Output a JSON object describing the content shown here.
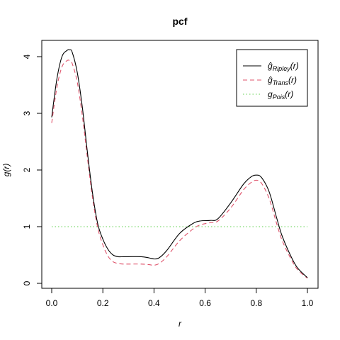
{
  "chart_data": {
    "type": "line",
    "title": "pcf",
    "xlabel": "r",
    "ylabel": "g(r)",
    "xlim": [
      0,
      1
    ],
    "ylim": [
      0,
      4.2
    ],
    "xticks": [
      0.0,
      0.2,
      0.4,
      0.6,
      0.8,
      1.0
    ],
    "xtick_labels": [
      "0.0",
      "0.2",
      "0.4",
      "0.6",
      "0.8",
      "1.0"
    ],
    "yticks": [
      0,
      1,
      2,
      3,
      4
    ],
    "ytick_labels": [
      "0",
      "1",
      "2",
      "3",
      "4"
    ],
    "grid": false,
    "legend_position": "top-right",
    "series": [
      {
        "name": "ĝRipley(r)",
        "name_base": "ĝ",
        "name_sub": "Ripley",
        "name_tail": "(r)",
        "color": "#000000",
        "dash": "solid",
        "x": [
          0.0,
          0.02,
          0.04,
          0.06,
          0.07,
          0.08,
          0.1,
          0.12,
          0.14,
          0.16,
          0.18,
          0.2,
          0.22,
          0.24,
          0.26,
          0.28,
          0.3,
          0.35,
          0.38,
          0.4,
          0.42,
          0.45,
          0.5,
          0.55,
          0.58,
          0.62,
          0.65,
          0.7,
          0.75,
          0.78,
          0.8,
          0.82,
          0.85,
          0.88,
          0.9,
          0.93,
          0.96,
          1.0
        ],
        "y": [
          2.93,
          3.6,
          4.0,
          4.11,
          4.12,
          4.08,
          3.72,
          3.1,
          2.3,
          1.58,
          1.05,
          0.78,
          0.6,
          0.5,
          0.47,
          0.47,
          0.47,
          0.47,
          0.45,
          0.43,
          0.45,
          0.58,
          0.88,
          1.05,
          1.1,
          1.11,
          1.14,
          1.42,
          1.75,
          1.88,
          1.91,
          1.87,
          1.62,
          1.15,
          0.85,
          0.53,
          0.28,
          0.1
        ]
      },
      {
        "name": "ĝTrans(r)",
        "name_base": "ĝ",
        "name_sub": "Trans",
        "name_tail": "(r)",
        "color": "#df536b",
        "dash": "dashed",
        "x": [
          0.0,
          0.02,
          0.04,
          0.06,
          0.07,
          0.08,
          0.1,
          0.12,
          0.14,
          0.16,
          0.18,
          0.2,
          0.22,
          0.24,
          0.26,
          0.28,
          0.3,
          0.35,
          0.38,
          0.4,
          0.42,
          0.45,
          0.5,
          0.55,
          0.58,
          0.62,
          0.65,
          0.7,
          0.75,
          0.78,
          0.8,
          0.82,
          0.85,
          0.88,
          0.9,
          0.93,
          0.96,
          1.0
        ],
        "y": [
          2.83,
          3.45,
          3.82,
          3.93,
          3.93,
          3.88,
          3.55,
          2.95,
          2.2,
          1.5,
          0.98,
          0.68,
          0.48,
          0.38,
          0.35,
          0.34,
          0.34,
          0.34,
          0.33,
          0.32,
          0.35,
          0.47,
          0.75,
          0.95,
          1.03,
          1.07,
          1.1,
          1.33,
          1.65,
          1.78,
          1.82,
          1.77,
          1.5,
          1.05,
          0.77,
          0.48,
          0.25,
          0.09
        ]
      },
      {
        "name": "gPois(r)",
        "name_base": "g",
        "name_sub": "Pois",
        "name_tail": "(r)",
        "color": "#61d04f",
        "dash": "dotted",
        "x": [
          0.0,
          1.0
        ],
        "y": [
          1,
          1
        ]
      }
    ]
  }
}
